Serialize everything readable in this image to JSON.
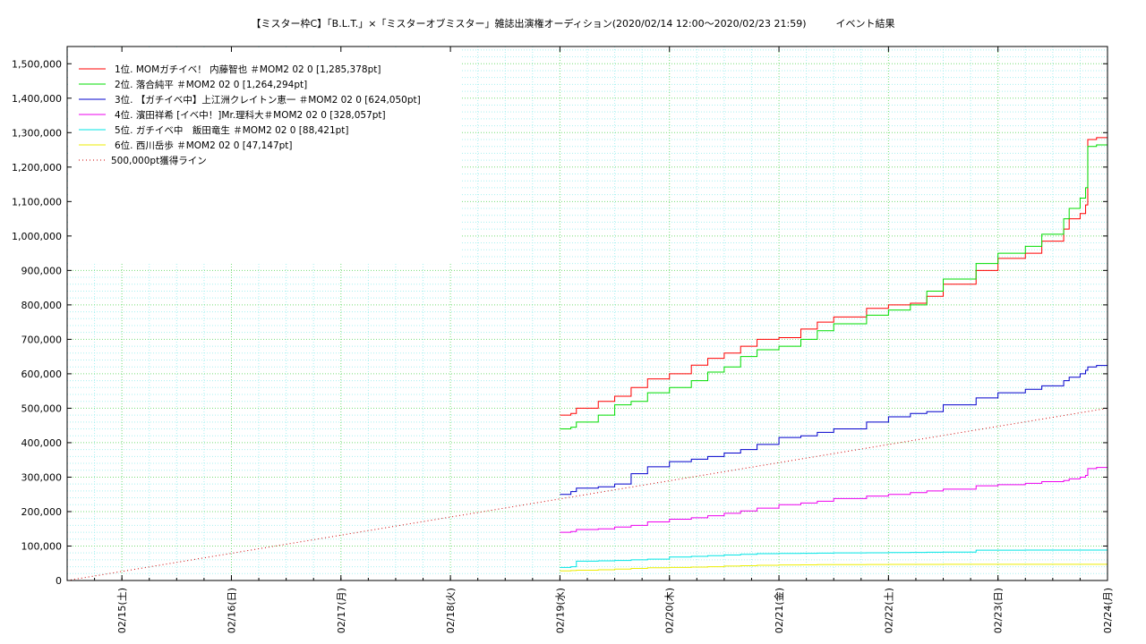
{
  "chart_data": {
    "type": "line",
    "title": "【ミスター枠C】「B.L.T.」×「ミスターオブミスター」雑誌出演権オーディション(2020/02/14 12:00〜2020/02/23 21:59)　　　イベント結果",
    "xlabel": "",
    "ylabel": "",
    "ylim": [
      0,
      1550000
    ],
    "y_ticks": [
      0,
      100000,
      200000,
      300000,
      400000,
      500000,
      600000,
      700000,
      800000,
      900000,
      1000000,
      1100000,
      1200000,
      1300000,
      1400000,
      1500000
    ],
    "y_tick_labels": [
      "0",
      "100,000",
      "200,000",
      "300,000",
      "400,000",
      "500,000",
      "600,000",
      "700,000",
      "800,000",
      "900,000",
      "1,000,000",
      "1,100,000",
      "1,200,000",
      "1,300,000",
      "1,400,000",
      "1,500,000"
    ],
    "x_unit": "day offset from 02/14 12:00",
    "xlim": [
      0,
      9.5
    ],
    "x_ticks": [
      0.5,
      1.5,
      2.5,
      3.5,
      4.5,
      5.5,
      6.5,
      7.5,
      8.5,
      9.5
    ],
    "x_tick_labels": [
      "02/15(土)",
      "02/16(日)",
      "02/17(月)",
      "02/18(火)",
      "02/19(水)",
      "02/20(木)",
      "02/21(金)",
      "02/22(土)",
      "02/23(日)",
      "02/24(月)"
    ],
    "grid": true,
    "legend_position": "top-left",
    "series": [
      {
        "name": "1位. MOMガチイベ！ 内藤智也 ＃MOM2 02 0 [1,285,378pt]",
        "color": "#ff0000",
        "x": [
          4.5,
          4.6,
          4.65,
          4.85,
          5.0,
          5.15,
          5.3,
          5.5,
          5.7,
          5.85,
          6.0,
          6.15,
          6.3,
          6.5,
          6.7,
          6.85,
          7.0,
          7.3,
          7.5,
          7.7,
          7.85,
          8.0,
          8.3,
          8.5,
          8.75,
          8.9,
          9.1,
          9.15,
          9.25,
          9.3,
          9.32,
          9.4
        ],
        "y": [
          480000,
          485000,
          500000,
          520000,
          535000,
          560000,
          585000,
          600000,
          625000,
          645000,
          660000,
          680000,
          700000,
          705000,
          730000,
          750000,
          765000,
          790000,
          800000,
          805000,
          825000,
          860000,
          900000,
          935000,
          950000,
          985000,
          1020000,
          1050000,
          1065000,
          1090000,
          1280000,
          1285378
        ]
      },
      {
        "name": "2位. 落合純平 ＃MOM2 02 0 [1,264,294pt]",
        "color": "#00dd00",
        "x": [
          4.5,
          4.6,
          4.65,
          4.85,
          5.0,
          5.15,
          5.3,
          5.5,
          5.7,
          5.85,
          6.0,
          6.15,
          6.3,
          6.5,
          6.7,
          6.85,
          7.0,
          7.3,
          7.5,
          7.7,
          7.85,
          8.0,
          8.3,
          8.5,
          8.75,
          8.9,
          9.1,
          9.15,
          9.25,
          9.3,
          9.32,
          9.4
        ],
        "y": [
          440000,
          445000,
          460000,
          480000,
          510000,
          520000,
          545000,
          560000,
          580000,
          605000,
          620000,
          650000,
          670000,
          680000,
          700000,
          725000,
          745000,
          770000,
          785000,
          800000,
          840000,
          875000,
          920000,
          950000,
          970000,
          1005000,
          1050000,
          1080000,
          1110000,
          1140000,
          1260000,
          1264294
        ]
      },
      {
        "name": "3位. 【ガチイベ中】上江洲クレイトン恵一 ＃MOM2 02 0 [624,050pt]",
        "color": "#0000cc",
        "x": [
          4.5,
          4.6,
          4.65,
          4.85,
          5.0,
          5.15,
          5.3,
          5.5,
          5.7,
          5.85,
          6.0,
          6.15,
          6.3,
          6.5,
          6.7,
          6.85,
          7.0,
          7.3,
          7.5,
          7.7,
          7.85,
          8.0,
          8.3,
          8.5,
          8.75,
          8.9,
          9.1,
          9.15,
          9.25,
          9.3,
          9.32,
          9.4
        ],
        "y": [
          250000,
          258000,
          268000,
          272000,
          280000,
          310000,
          330000,
          345000,
          352000,
          360000,
          370000,
          380000,
          395000,
          415000,
          420000,
          430000,
          440000,
          460000,
          475000,
          485000,
          490000,
          510000,
          530000,
          545000,
          555000,
          565000,
          580000,
          590000,
          600000,
          610000,
          620000,
          624050
        ]
      },
      {
        "name": "4位. 濱田祥希 [イベ中！]Mr.理科大＃MOM2 02 0 [328,057pt]",
        "color": "#ee00ee",
        "x": [
          4.5,
          4.6,
          4.65,
          4.85,
          5.0,
          5.15,
          5.3,
          5.5,
          5.7,
          5.85,
          6.0,
          6.15,
          6.3,
          6.5,
          6.7,
          6.85,
          7.0,
          7.3,
          7.5,
          7.7,
          7.85,
          8.0,
          8.3,
          8.5,
          8.75,
          8.9,
          9.1,
          9.15,
          9.25,
          9.3,
          9.32,
          9.4
        ],
        "y": [
          140000,
          142000,
          148000,
          150000,
          155000,
          160000,
          170000,
          178000,
          182000,
          188000,
          195000,
          202000,
          210000,
          220000,
          225000,
          230000,
          238000,
          245000,
          250000,
          255000,
          260000,
          265000,
          275000,
          278000,
          282000,
          287000,
          290000,
          295000,
          300000,
          305000,
          325000,
          328057
        ]
      },
      {
        "name": "5位. ガチイベ中　飯田竜生 ＃MOM2 02 0 [88,421pt]",
        "color": "#00e5e5",
        "x": [
          4.5,
          4.6,
          4.65,
          4.85,
          5.0,
          5.15,
          5.3,
          5.5,
          5.7,
          5.85,
          6.0,
          6.15,
          6.3,
          6.5,
          6.7,
          6.85,
          7.0,
          7.3,
          7.5,
          7.7,
          7.85,
          8.0,
          8.3,
          8.5,
          8.75,
          8.9,
          9.1,
          9.15,
          9.25,
          9.3,
          9.32,
          9.4
        ],
        "y": [
          38000,
          40000,
          56000,
          57000,
          58000,
          60000,
          62000,
          68000,
          70000,
          72000,
          74000,
          76000,
          78000,
          78500,
          79000,
          79500,
          80000,
          80500,
          81000,
          81500,
          82000,
          82500,
          88000,
          88100,
          88150,
          88200,
          88250,
          88300,
          88350,
          88380,
          88400,
          88421
        ]
      },
      {
        "name": "6位. 西川岳歩 ＃MOM2 02 0 [47,147pt]",
        "color": "#eeee00",
        "x": [
          4.5,
          4.6,
          4.65,
          4.85,
          5.0,
          5.15,
          5.3,
          5.5,
          5.7,
          5.85,
          6.0,
          6.15,
          6.3,
          6.5,
          6.7,
          6.85,
          7.0,
          7.3,
          7.5,
          7.7,
          7.85,
          8.0,
          8.3,
          8.5,
          8.75,
          8.9,
          9.1,
          9.15,
          9.25,
          9.3,
          9.32,
          9.4
        ],
        "y": [
          28000,
          29000,
          30000,
          31000,
          33000,
          35000,
          37000,
          38000,
          39000,
          40000,
          42000,
          43000,
          44000,
          45000,
          45500,
          46000,
          46200,
          46400,
          46600,
          46700,
          46800,
          46900,
          47000,
          47050,
          47080,
          47100,
          47120,
          47130,
          47140,
          47145,
          47146,
          47147
        ]
      },
      {
        "name": "500,000pt獲得ライン",
        "color": "#cc0000",
        "dashed": true,
        "x": [
          0,
          9.5
        ],
        "y": [
          0,
          500000
        ]
      }
    ]
  }
}
